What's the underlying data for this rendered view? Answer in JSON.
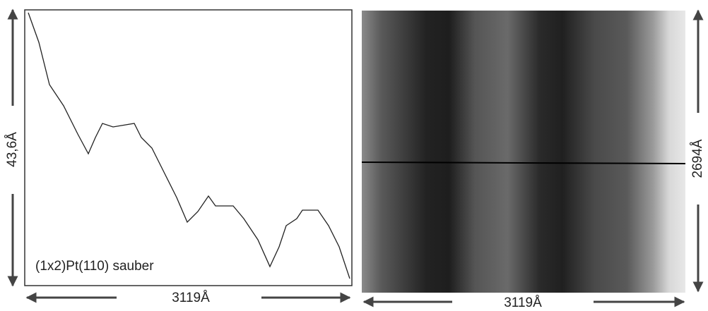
{
  "profile": {
    "height_label": "43,6Å",
    "caption": "(1x2)Pt(110) sauber",
    "width_label": "3119Å"
  },
  "image": {
    "width_label": "3119Å",
    "height_label": "2694Å"
  }
}
